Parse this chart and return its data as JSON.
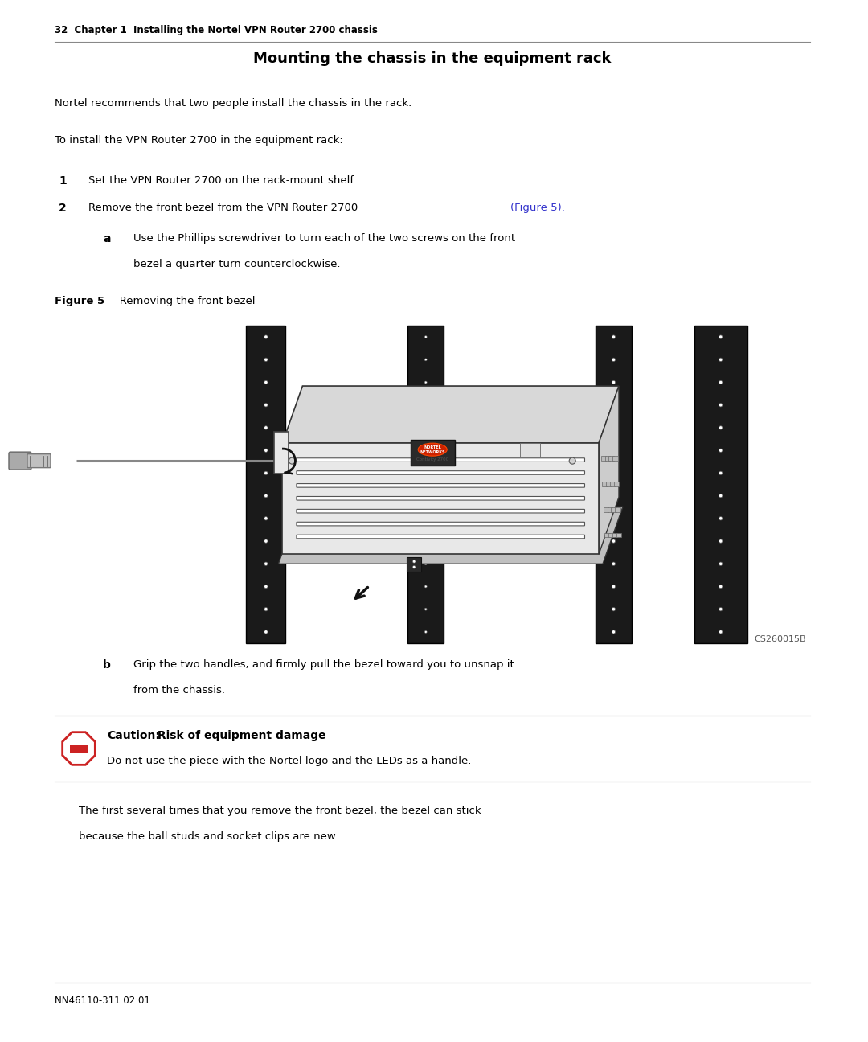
{
  "bg_color": "#ffffff",
  "page_width": 10.8,
  "page_height": 12.96,
  "dpi": 100,
  "lm": 0.68,
  "rm": 10.08,
  "header_text": "32  Chapter 1  Installing the Nortel VPN Router 2700 chassis",
  "footer_text": "NN46110-311 02.01",
  "title": "Mounting the chassis in the equipment rack",
  "para1": "Nortel recommends that two people install the chassis in the rack.",
  "para2": "To install the VPN Router 2700 in the equipment rack:",
  "step1_num": "1",
  "step1_text": "Set the VPN Router 2700 on the rack-mount shelf.",
  "step2_num": "2",
  "step2_text": "Remove the front bezel from the VPN Router 2700 ",
  "step2_link": "(Figure 5).",
  "step2a_num": "a",
  "step2a_line1": "Use the Phillips screwdriver to turn each of the two screws on the front",
  "step2a_line2": "bezel a quarter turn counterclockwise.",
  "fig_label_bold": "Figure 5",
  "fig_label_rest": "   Removing the front bezel",
  "fig_caption_id": "CS260015B",
  "step2b_num": "b",
  "step2b_line1": "Grip the two handles, and firmly pull the bezel toward you to unsnap it",
  "step2b_line2": "from the chassis.",
  "caution_title_bold": "Caution:",
  "caution_title_rest": " Risk of equipment damage",
  "caution_text": "Do not use the piece with the Nortel logo and the LEDs as a handle.",
  "para_final_line1": "The first several times that you remove the front bezel, the bezel can stick",
  "para_final_line2": "because the ball studs and socket clips are new.",
  "text_color": "#000000",
  "link_color": "#3333cc",
  "line_color": "#888888"
}
